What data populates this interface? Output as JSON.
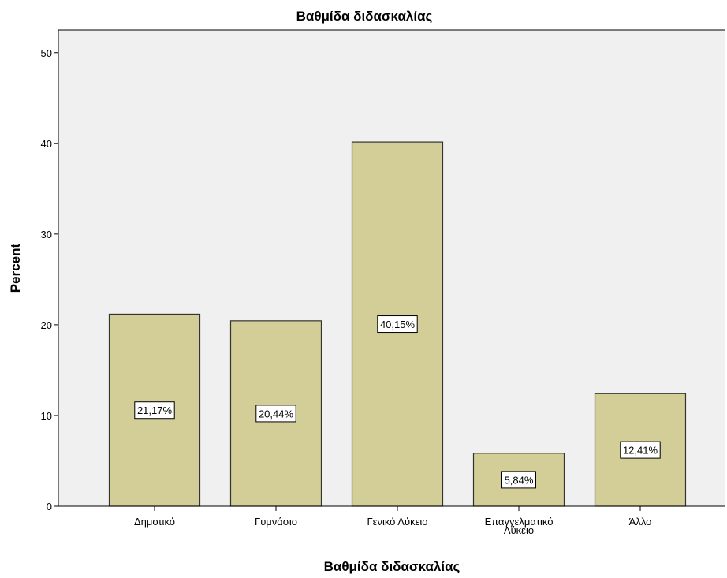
{
  "chart_data": {
    "type": "bar",
    "title": "Βαθμίδα διδασκαλίας",
    "xlabel": "Βαθμίδα διδασκαλίας",
    "ylabel": "Percent",
    "categories": [
      [
        "Δημοτικό"
      ],
      [
        "Γυμνάσιο"
      ],
      [
        "Γενικό Λύκειο"
      ],
      [
        "Επαγγελματικό",
        "Λύκειο"
      ],
      [
        "Άλλο"
      ]
    ],
    "values": [
      21.17,
      20.44,
      40.15,
      5.84,
      12.41
    ],
    "data_labels": [
      "21,17%",
      "20,44%",
      "40,15%",
      "5,84%",
      "12,41%"
    ],
    "yticks": [
      0,
      10,
      20,
      30,
      40,
      50
    ],
    "ylim": [
      0,
      52.5
    ],
    "grid": false,
    "colors": {
      "bar_fill": "#D3CE97",
      "bar_stroke": "#333333",
      "plot_bg": "#F0F0F0",
      "frame": "#000000"
    }
  }
}
